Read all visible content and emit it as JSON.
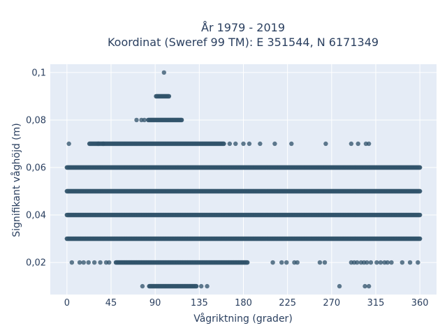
{
  "chart_data": {
    "type": "scatter",
    "title_line1": "År 1979 - 2019",
    "title_line2": "Koordinat (Sweref 99 TM): E 351544, N 6171349",
    "xlabel": "Vågriktning (grader)",
    "ylabel": "Signifikant våghöjd (m)",
    "xlim": [
      -17,
      377
    ],
    "ylim": [
      0.0065,
      0.1035
    ],
    "x_ticks": [
      0,
      45,
      90,
      135,
      180,
      225,
      270,
      315,
      360
    ],
    "x_tick_labels": [
      "0",
      "45",
      "90",
      "135",
      "180",
      "225",
      "270",
      "315",
      "360"
    ],
    "y_ticks": [
      0.02,
      0.04,
      0.06,
      0.08,
      0.1
    ],
    "y_tick_labels": [
      "0,02",
      "0,04",
      "0,06",
      "0,08",
      "0,1"
    ],
    "grid": true,
    "legend": "none",
    "marker_color": "#2d5068",
    "background_color": "#e5ecf6",
    "bands": [
      {
        "y": 0.1,
        "x_min": 99,
        "x_max": 99
      },
      {
        "y": 0.09,
        "x_min": 91,
        "x_max": 104
      },
      {
        "y": 0.08,
        "x_min": 83,
        "x_max": 117
      },
      {
        "y": 0.07,
        "x_min": 23,
        "x_max": 160
      },
      {
        "y": 0.06,
        "x_min": 0,
        "x_max": 360
      },
      {
        "y": 0.05,
        "x_min": 0,
        "x_max": 360
      },
      {
        "y": 0.04,
        "x_min": 0,
        "x_max": 360
      },
      {
        "y": 0.03,
        "x_min": 0,
        "x_max": 360
      },
      {
        "y": 0.02,
        "x_min": 50,
        "x_max": 184
      },
      {
        "y": 0.01,
        "x_min": 84,
        "x_max": 132
      }
    ],
    "sparse_points": [
      {
        "x": 2,
        "y": 0.07
      },
      {
        "x": 32,
        "y": 0.07
      },
      {
        "x": 37,
        "y": 0.07
      },
      {
        "x": 166,
        "y": 0.07
      },
      {
        "x": 172,
        "y": 0.07
      },
      {
        "x": 180,
        "y": 0.07
      },
      {
        "x": 186,
        "y": 0.07
      },
      {
        "x": 197,
        "y": 0.07
      },
      {
        "x": 212,
        "y": 0.07
      },
      {
        "x": 229,
        "y": 0.07
      },
      {
        "x": 264,
        "y": 0.07
      },
      {
        "x": 290,
        "y": 0.07
      },
      {
        "x": 297,
        "y": 0.07
      },
      {
        "x": 305,
        "y": 0.07
      },
      {
        "x": 308,
        "y": 0.07
      },
      {
        "x": 71,
        "y": 0.08
      },
      {
        "x": 76,
        "y": 0.08
      },
      {
        "x": 79,
        "y": 0.08
      },
      {
        "x": 5,
        "y": 0.02
      },
      {
        "x": 13,
        "y": 0.02
      },
      {
        "x": 17,
        "y": 0.02
      },
      {
        "x": 22,
        "y": 0.02
      },
      {
        "x": 28,
        "y": 0.02
      },
      {
        "x": 34,
        "y": 0.02
      },
      {
        "x": 40,
        "y": 0.02
      },
      {
        "x": 43,
        "y": 0.02
      },
      {
        "x": 210,
        "y": 0.02
      },
      {
        "x": 219,
        "y": 0.02
      },
      {
        "x": 224,
        "y": 0.02
      },
      {
        "x": 232,
        "y": 0.02
      },
      {
        "x": 235,
        "y": 0.02
      },
      {
        "x": 258,
        "y": 0.02
      },
      {
        "x": 263,
        "y": 0.02
      },
      {
        "x": 290,
        "y": 0.02
      },
      {
        "x": 293,
        "y": 0.02
      },
      {
        "x": 296,
        "y": 0.02
      },
      {
        "x": 300,
        "y": 0.02
      },
      {
        "x": 303,
        "y": 0.02
      },
      {
        "x": 306,
        "y": 0.02
      },
      {
        "x": 310,
        "y": 0.02
      },
      {
        "x": 316,
        "y": 0.02
      },
      {
        "x": 320,
        "y": 0.02
      },
      {
        "x": 324,
        "y": 0.02
      },
      {
        "x": 327,
        "y": 0.02
      },
      {
        "x": 331,
        "y": 0.02
      },
      {
        "x": 342,
        "y": 0.02
      },
      {
        "x": 350,
        "y": 0.02
      },
      {
        "x": 358,
        "y": 0.02
      },
      {
        "x": 77,
        "y": 0.01
      },
      {
        "x": 137,
        "y": 0.01
      },
      {
        "x": 143,
        "y": 0.01
      },
      {
        "x": 278,
        "y": 0.01
      },
      {
        "x": 304,
        "y": 0.01
      },
      {
        "x": 308,
        "y": 0.01
      }
    ]
  }
}
